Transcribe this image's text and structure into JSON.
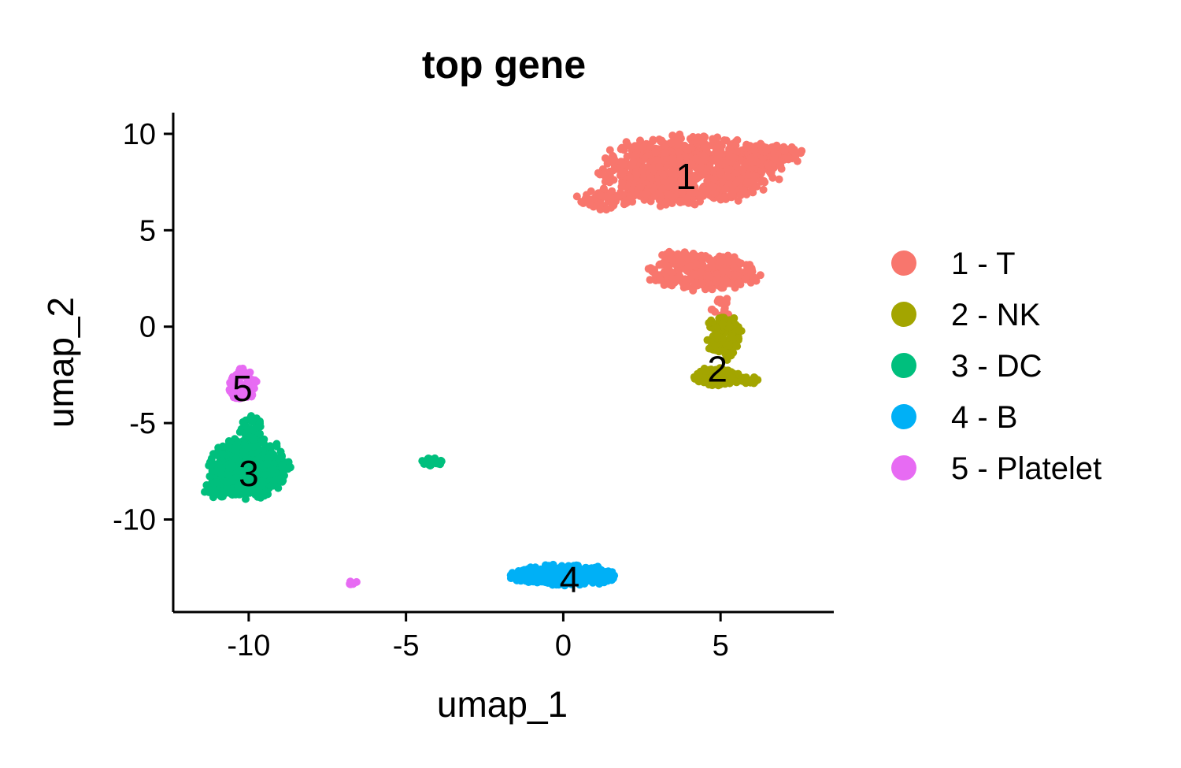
{
  "chart_data": {
    "type": "scatter",
    "title": "top gene",
    "xlabel": "umap_1",
    "ylabel": "umap_2",
    "xlim": [
      -12.4,
      8.6
    ],
    "ylim": [
      -14.8,
      11.1
    ],
    "xticks": [
      -10,
      -5,
      0,
      5
    ],
    "yticks": [
      -10,
      -5,
      0,
      5,
      10
    ],
    "xtick_labels": [
      "-10",
      "-5",
      "0",
      "5"
    ],
    "ytick_labels": [
      "-10",
      "-5",
      "0",
      "5",
      "10"
    ],
    "grid": false,
    "legend_position": "right",
    "series": [
      {
        "name": "1 - T",
        "label": "1",
        "color": "#F8766D",
        "label_pos": [
          3.9,
          7.8
        ],
        "blobs": [
          {
            "cx": 4.0,
            "cy": 8.1,
            "rx": 2.7,
            "ry": 1.7,
            "n": 900
          },
          {
            "cx": 6.4,
            "cy": 8.9,
            "rx": 1.2,
            "ry": 0.55,
            "n": 120
          },
          {
            "cx": 1.3,
            "cy": 6.6,
            "rx": 0.9,
            "ry": 0.5,
            "n": 60
          },
          {
            "cx": 4.5,
            "cy": 2.8,
            "rx": 1.7,
            "ry": 0.9,
            "n": 260
          },
          {
            "cx": 3.7,
            "cy": 3.5,
            "rx": 0.6,
            "ry": 0.5,
            "n": 40
          },
          {
            "cx": 5.0,
            "cy": 0.8,
            "rx": 0.3,
            "ry": 0.8,
            "n": 25
          }
        ]
      },
      {
        "name": "2 - NK",
        "label": "2",
        "color": "#A3A500",
        "label_pos": [
          4.9,
          -2.2
        ],
        "blobs": [
          {
            "cx": 5.1,
            "cy": -0.5,
            "rx": 0.55,
            "ry": 1.1,
            "n": 130
          },
          {
            "cx": 4.9,
            "cy": -2.6,
            "rx": 0.7,
            "ry": 0.45,
            "n": 150
          },
          {
            "cx": 5.8,
            "cy": -2.8,
            "rx": 0.45,
            "ry": 0.2,
            "n": 25
          }
        ]
      },
      {
        "name": "3 - DC",
        "label": "3",
        "color": "#00BF7D",
        "label_pos": [
          -10.0,
          -7.6
        ],
        "blobs": [
          {
            "cx": -10.0,
            "cy": -7.3,
            "rx": 1.2,
            "ry": 1.5,
            "n": 500
          },
          {
            "cx": -10.8,
            "cy": -8.4,
            "rx": 0.6,
            "ry": 0.5,
            "n": 60
          },
          {
            "cx": -9.9,
            "cy": -5.3,
            "rx": 0.35,
            "ry": 0.7,
            "n": 40
          },
          {
            "cx": -4.2,
            "cy": -7.0,
            "rx": 0.35,
            "ry": 0.2,
            "n": 22
          }
        ]
      },
      {
        "name": "4 - B",
        "label": "4",
        "color": "#00B0F6",
        "label_pos": [
          0.2,
          -13.1
        ],
        "blobs": [
          {
            "cx": 0.0,
            "cy": -12.9,
            "rx": 1.6,
            "ry": 0.5,
            "n": 420
          }
        ]
      },
      {
        "name": "5 - Platelet",
        "label": "5",
        "color": "#E76BF3",
        "label_pos": [
          -10.2,
          -3.2
        ],
        "blobs": [
          {
            "cx": -10.2,
            "cy": -3.0,
            "rx": 0.45,
            "ry": 0.8,
            "n": 90
          },
          {
            "cx": -6.7,
            "cy": -13.3,
            "rx": 0.15,
            "ry": 0.12,
            "n": 5
          }
        ]
      }
    ]
  }
}
